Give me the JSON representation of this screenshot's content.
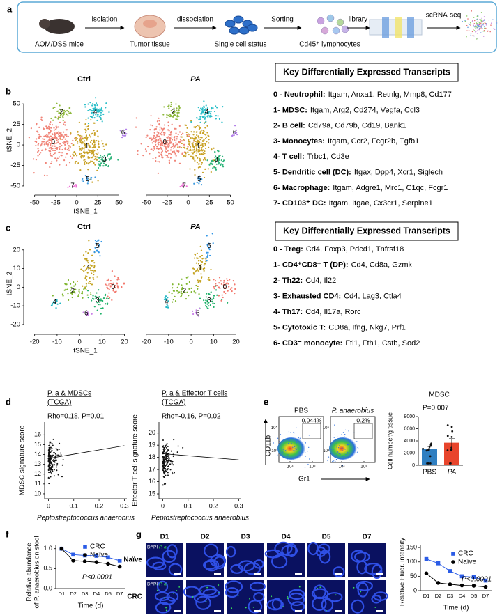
{
  "panel_a": {
    "letter": "a",
    "labels": [
      "AOM/DSS mice",
      "Tumor tissue",
      "Single cell status",
      "Cd45⁺ lymphocytes"
    ],
    "arrows": [
      "isolation",
      "dissociation",
      "Sorting",
      "library",
      "scRNA-seq"
    ]
  },
  "panel_b": {
    "letter": "b",
    "titles": [
      "Ctrl",
      "PA"
    ],
    "xlabel": "tSNE_1",
    "ylabel": "tSNE_2",
    "xlim": [
      -58,
      62
    ],
    "ylim": [
      -56,
      68
    ],
    "xticks": [
      -50,
      -25,
      0,
      25,
      50
    ],
    "yticks": [
      -50,
      -25,
      0,
      25,
      50
    ],
    "clusters": [
      {
        "label": "0",
        "x": -28,
        "y": 3,
        "color": "#f08377"
      },
      {
        "label": "1",
        "x": 12,
        "y": -2,
        "color": "#c9a227"
      },
      {
        "label": "2",
        "x": -18,
        "y": 40,
        "color": "#8db83a"
      },
      {
        "label": "3",
        "x": 33,
        "y": -18,
        "color": "#2fb57b"
      },
      {
        "label": "4",
        "x": 22,
        "y": 40,
        "color": "#2bbfc9"
      },
      {
        "label": "5",
        "x": 13,
        "y": -42,
        "color": "#3d9be0"
      },
      {
        "label": "6",
        "x": 55,
        "y": 15,
        "color": "#b27ee8"
      },
      {
        "label": "7",
        "x": -5,
        "y": -50,
        "color": "#ee6fd5"
      }
    ],
    "table": {
      "title": "Key Differentially Expressed Transcripts",
      "rows": [
        {
          "label": "0 - Neutrophil:",
          "genes": "Itgam, Anxa1, Retnlg, Mmp8, Cd177"
        },
        {
          "label": "1- MDSC:",
          "genes": "Itgam, Arg2, Cd274, Vegfa, Ccl3"
        },
        {
          "label": "2- B cell:",
          "genes": "Cd79a, Cd79b, Cd19, Bank1"
        },
        {
          "label": "3- Monocytes:",
          "genes": "Itgam, Ccr2, Fcgr2b, Tgfb1"
        },
        {
          "label": "4- T cell:",
          "genes": "Trbc1, Cd3e"
        },
        {
          "label": "5- Dendritic cell (DC):",
          "genes": "Itgax, Dpp4, Xcr1, Siglech"
        },
        {
          "label": "6- Macrophage:",
          "genes": "Itgam, Adgre1, Mrc1, C1qc, Fcgr1"
        },
        {
          "label": "7- CD103⁺ DC:",
          "genes": "Itgam, Itgae, Cx3cr1, Serpine1"
        }
      ]
    }
  },
  "panel_c": {
    "letter": "c",
    "titles": [
      "Ctrl",
      "PA"
    ],
    "xlabel": "tSNE_1",
    "ylabel": "tSNE_2",
    "xlim": [
      -23,
      22
    ],
    "ylim": [
      -23,
      27
    ],
    "xticks": [
      -20,
      -10,
      0,
      10,
      20
    ],
    "yticks": [
      -20,
      -10,
      0,
      10,
      20
    ],
    "clusters": [
      {
        "label": "0",
        "x": 15,
        "y": 0,
        "color": "#f3786d"
      },
      {
        "label": "1",
        "x": 4,
        "y": 10,
        "color": "#c4a21f"
      },
      {
        "label": "2",
        "x": -3,
        "y": -2,
        "color": "#7fb62e"
      },
      {
        "label": "3",
        "x": 8,
        "y": -7,
        "color": "#1fb26a"
      },
      {
        "label": "4",
        "x": -11,
        "y": -8,
        "color": "#1fb8c4"
      },
      {
        "label": "5",
        "x": 8,
        "y": 22,
        "color": "#3196e6"
      },
      {
        "label": "6",
        "x": 3,
        "y": -14,
        "color": "#c87fe8"
      }
    ],
    "table": {
      "title": "Key Differentially Expressed Transcripts",
      "rows": [
        {
          "label": "0 - Treg:",
          "genes": "Cd4, Foxp3, Pdcd1, Tnfrsf18"
        },
        {
          "label": "1- CD4⁺CD8⁺ T (DP):",
          "genes": "Cd4, Cd8a, Gzmk"
        },
        {
          "label": "2- Th22:",
          "genes": "Cd4, Il22"
        },
        {
          "label": "3- Exhausted CD4:",
          "genes": "Cd4, Lag3, Ctla4"
        },
        {
          "label": "4- Th17:",
          "genes": "Cd4, Il17a, Rorc"
        },
        {
          "label": "5- Cytotoxic T:",
          "genes": "CD8a, Ifng, Nkg7, Prf1"
        },
        {
          "label": "6- CD3⁻ monocyte:",
          "genes": "Ftl1, Fth1, Cstb, Sod2"
        }
      ]
    }
  },
  "panel_d": {
    "letter": "d",
    "xlabel": "Peptostreptococcus anaerobius",
    "xlim": [
      -0.015,
      0.31
    ],
    "xticks": [
      0,
      0.1,
      0.2,
      0.3
    ],
    "plots": [
      {
        "title": [
          "P. a & MDSCs",
          "(TCGA)"
        ],
        "stat": "Rho=0.18, P=0.01",
        "ylabel": "MDSC signature score",
        "ylim": [
          9.5,
          17.3
        ],
        "yticks": [
          10,
          11,
          12,
          13,
          14,
          15,
          16
        ],
        "fit": {
          "x": [
            0,
            0.3
          ],
          "y": [
            13.6,
            14.9
          ]
        }
      },
      {
        "title": [
          "P. a & Effector T cells",
          "(TCGA)"
        ],
        "stat": "Rho=-0.16, P=0.02",
        "ylabel": "Effector T cell signature score",
        "ylim": [
          14.6,
          20.9
        ],
        "yticks": [
          15,
          16,
          17,
          18,
          19,
          20
        ],
        "fit": {
          "x": [
            0,
            0.3
          ],
          "y": [
            18.3,
            17.8
          ]
        }
      }
    ]
  },
  "panel_e": {
    "letter": "e",
    "flow": {
      "ylabel": "CD11b",
      "xlabel": "Gr1",
      "lim": [
        100,
        1000000
      ],
      "ticks": [
        {
          "value": 1000,
          "label": "10³"
        },
        {
          "value": 100000,
          "label": "10⁵"
        }
      ],
      "plots": [
        {
          "title": "PBS",
          "gate": "0.044%"
        },
        {
          "title": "P. anaerobius",
          "gate": "0.2%"
        }
      ]
    },
    "bar": {
      "type": "bar",
      "title": "MDSC",
      "stat": "P=0.007",
      "ylabel": "Cell number/g tissue",
      "categories": [
        "PBS",
        "PA"
      ],
      "values": [
        2700,
        3700
      ],
      "errors": [
        400,
        650
      ],
      "colors": [
        "#2f7fc1",
        "#e8452c"
      ],
      "ylim": [
        0,
        8000
      ],
      "yticks": [
        0,
        2000,
        4000,
        6000,
        8000
      ]
    }
  },
  "panel_f": {
    "letter": "f",
    "chart": {
      "type": "line",
      "ylabel": [
        "Relative abundance",
        "of P. anaerobius on stool"
      ],
      "xlabel": "Time (d)",
      "categories": [
        "D1",
        "D2",
        "D3",
        "D4",
        "D5",
        "D7"
      ],
      "series": [
        {
          "name": "CRC",
          "color": "#2b5ce6",
          "marker": "square",
          "values": [
            1.0,
            0.85,
            0.83,
            0.82,
            0.78,
            0.7
          ]
        },
        {
          "name": "Naïve",
          "color": "#000000",
          "marker": "circle",
          "values": [
            1.0,
            0.7,
            0.68,
            0.66,
            0.62,
            0.55
          ]
        }
      ],
      "ylim": [
        0,
        1.1
      ],
      "yticks": [
        {
          "value": 0,
          "label": "0.0"
        },
        0.5,
        {
          "value": 1,
          "label": "1.0"
        }
      ],
      "annotation": "P<0.0001"
    }
  },
  "panel_g": {
    "letter": "g",
    "columns": [
      "D1",
      "D2",
      "D3",
      "D4",
      "D5",
      "D7"
    ],
    "rows": [
      "Naïve",
      "CRC"
    ],
    "stain": [
      "DAPI",
      "P. a"
    ],
    "chart": {
      "type": "line",
      "ylabel": "Relative Fluor. intensity",
      "xlabel": "Time (d)",
      "categories": [
        "D1",
        "D2",
        "D3",
        "D4",
        "D5",
        "D7"
      ],
      "series": [
        {
          "name": "CRC",
          "color": "#2b5ce6",
          "marker": "square",
          "values": [
            110,
            95,
            68,
            50,
            47,
            35
          ]
        },
        {
          "name": "Naïve",
          "color": "#000000",
          "marker": "circle",
          "values": [
            60,
            27,
            22,
            18,
            17,
            13
          ]
        }
      ],
      "ylim": [
        0,
        160
      ],
      "yticks": [
        0,
        50,
        100,
        150
      ],
      "annotation": "P<0.0001"
    }
  }
}
